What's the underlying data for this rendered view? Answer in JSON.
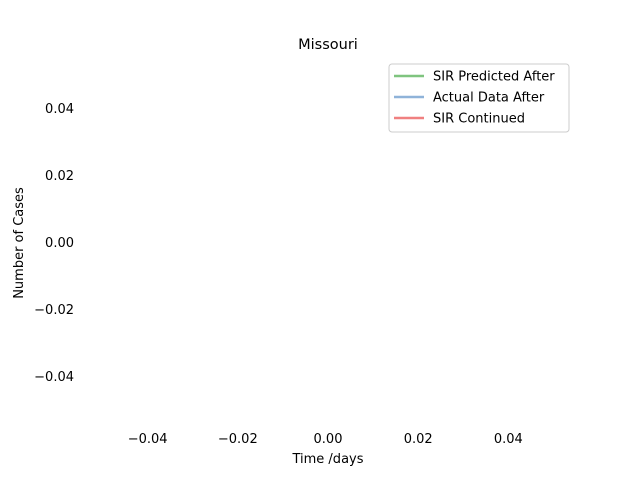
{
  "chart_data": {
    "type": "line",
    "title": "Missouri",
    "xlabel": "Time /days",
    "ylabel": "Number of Cases",
    "xlim": [
      -0.055,
      0.055
    ],
    "ylim": [
      -0.055,
      0.055
    ],
    "x_ticks": [
      -0.04,
      -0.02,
      0.0,
      0.02,
      0.04
    ],
    "x_tick_labels": [
      "−0.04",
      "−0.02",
      "0.00",
      "0.02",
      "0.04"
    ],
    "y_ticks": [
      0.04,
      0.02,
      0.0,
      -0.02,
      -0.04
    ],
    "y_tick_labels": [
      "0.04",
      "0.02",
      "0.00",
      "−0.02",
      "−0.04"
    ],
    "grid": false,
    "legend_position": "top-right",
    "series": [
      {
        "name": "SIR Predicted After",
        "color": "#7fc47f",
        "x": [],
        "y": []
      },
      {
        "name": "Actual Data After",
        "color": "#8fb3d9",
        "x": [],
        "y": []
      },
      {
        "name": "SIR Continued",
        "color": "#f08080",
        "x": [],
        "y": []
      }
    ]
  }
}
